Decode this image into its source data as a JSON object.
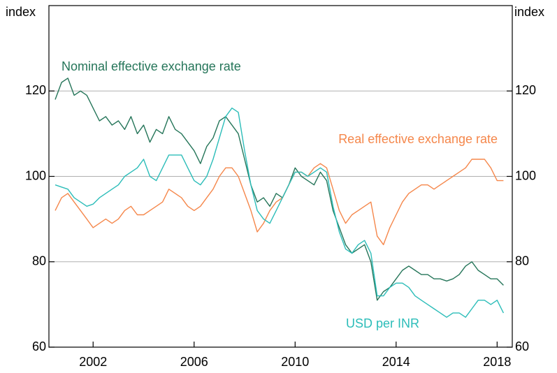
{
  "chart_data": {
    "type": "line",
    "y_label": "index",
    "y2_label": "index",
    "x": [
      2000.5,
      2000.75,
      2001,
      2001.25,
      2001.5,
      2001.75,
      2002,
      2002.25,
      2002.5,
      2002.75,
      2003,
      2003.25,
      2003.5,
      2003.75,
      2004,
      2004.25,
      2004.5,
      2004.75,
      2005,
      2005.25,
      2005.5,
      2005.75,
      2006,
      2006.25,
      2006.5,
      2006.75,
      2007,
      2007.25,
      2007.5,
      2007.75,
      2008,
      2008.25,
      2008.5,
      2008.75,
      2009,
      2009.25,
      2009.5,
      2009.75,
      2010,
      2010.25,
      2010.5,
      2010.75,
      2011,
      2011.25,
      2011.5,
      2011.75,
      2012,
      2012.25,
      2012.5,
      2012.75,
      2013,
      2013.25,
      2013.5,
      2013.75,
      2014,
      2014.25,
      2014.5,
      2014.75,
      2015,
      2015.25,
      2015.5,
      2015.75,
      2016,
      2016.25,
      2016.5,
      2016.75,
      2017,
      2017.25,
      2017.5,
      2017.75,
      2018,
      2018.25
    ],
    "series": [
      {
        "name": "Nominal effective exchange rate",
        "color": "#257559",
        "values": [
          118,
          122,
          123,
          119,
          120,
          119,
          116,
          113,
          114,
          112,
          113,
          111,
          114,
          110,
          112,
          108,
          111,
          110,
          114,
          111,
          110,
          108,
          106,
          103,
          107,
          109,
          113,
          114,
          112,
          110,
          104,
          98,
          94,
          95,
          93,
          96,
          95,
          98,
          102,
          100,
          99,
          98,
          101,
          99,
          92,
          88,
          84,
          82,
          83,
          84,
          80,
          71,
          73,
          74,
          76,
          78,
          79,
          78,
          77,
          77,
          76,
          76,
          75.5,
          76,
          77,
          79,
          80,
          78,
          77,
          76,
          76,
          74.5
        ]
      },
      {
        "name": "Real effective exchange rate",
        "color": "#f5874b",
        "values": [
          92,
          95,
          96,
          94,
          92,
          90,
          88,
          89,
          90,
          89,
          90,
          92,
          93,
          91,
          91,
          92,
          93,
          94,
          97,
          96,
          95,
          93,
          92,
          93,
          95,
          97,
          100,
          102,
          102,
          100,
          96,
          92,
          87,
          89,
          92,
          94,
          95,
          98,
          101,
          101,
          100,
          102,
          103,
          102,
          97,
          92,
          89,
          91,
          92,
          93,
          94,
          86,
          84,
          88,
          91,
          94,
          96,
          97,
          98,
          98,
          97,
          98,
          99,
          100,
          101,
          102,
          104,
          104,
          104,
          102,
          99,
          99
        ]
      },
      {
        "name": "USD per INR",
        "color": "#2cbdb9",
        "values": [
          98,
          97.5,
          97,
          95,
          94,
          93,
          93.5,
          95,
          96,
          97,
          98,
          100,
          101,
          102,
          104,
          100,
          99,
          102,
          105,
          105,
          105,
          102,
          99,
          98,
          100,
          104,
          109,
          114,
          116,
          115,
          106,
          98,
          92,
          90,
          89,
          92,
          95,
          98,
          101,
          101,
          100,
          101,
          102,
          101,
          93,
          87,
          83,
          82,
          84,
          85,
          82,
          72,
          72,
          74,
          75,
          75,
          74,
          72,
          71,
          70,
          69,
          68,
          67,
          68,
          68,
          67,
          69,
          71,
          71,
          70,
          71,
          68
        ]
      }
    ],
    "xlim": [
      2000.25,
      2018.6
    ],
    "xticks": [
      2002,
      2006,
      2010,
      2014,
      2018
    ],
    "ylim": [
      60,
      140
    ],
    "yticks": [
      60,
      80,
      100,
      120
    ],
    "grid": true
  }
}
